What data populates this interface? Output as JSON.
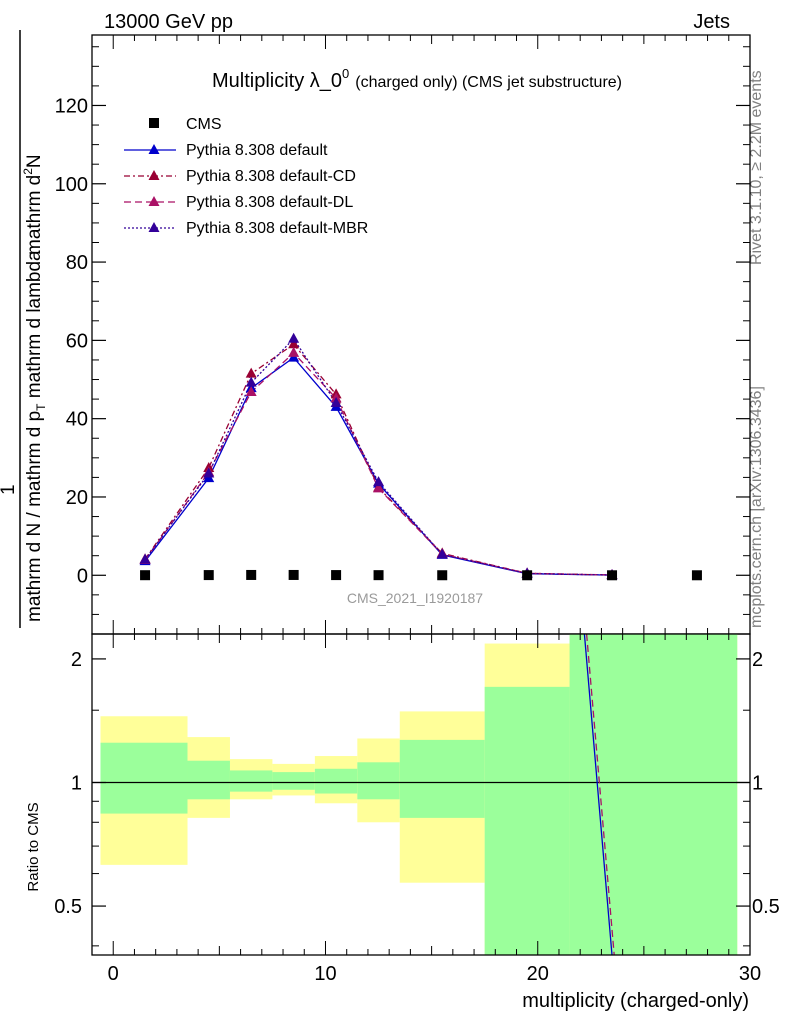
{
  "header": {
    "left": "13000 GeV pp",
    "right": "Jets"
  },
  "side_labels": {
    "rivet": "Rivet 3.1.10, ≥ 2.2M events",
    "mcplots": "mcplots.cern.ch [arXiv:1306.3436]"
  },
  "watermark": "CMS_2021_I1920187",
  "chart_data": {
    "type": "scatter",
    "title_main": "Multiplicity λ_0",
    "title_sup": "0",
    "title_suffix": "(charged only) (CMS jet substructure)",
    "xlabel": "multiplicity (charged-only)",
    "ylabel_upper_line1": "mathrm d",
    "ylabel_upper_sup": "2",
    "ylabel_upper_line1b": "N",
    "ylabel_upper_line2": "mathrm d p",
    "ylabel_upper_sub": "T",
    "ylabel_upper_line2b": " mathrm d lambda",
    "ylabel_lower_line1": "mathrm d N / mathrm d p",
    "ylabel_lower_sub": "T",
    "ylabel_lower_line1b": "mathrm d N",
    "ylabel_prefix": "1",
    "ylabel_ratio": "Ratio to CMS",
    "xlim": [
      -1,
      30
    ],
    "ylim": [
      -15,
      138
    ],
    "ratio_ylim": [
      0.38,
      2.3
    ],
    "xticks": [
      0,
      10,
      20,
      30
    ],
    "yticks": [
      0,
      20,
      40,
      60,
      80,
      100,
      120
    ],
    "ratio_yticks": [
      0.5,
      1,
      2
    ],
    "ratio_ytick_labels": [
      "0.5",
      "1",
      "2"
    ],
    "legend_position": "top-left",
    "cms": {
      "name": "CMS",
      "x": [
        1.5,
        4.5,
        6.5,
        8.5,
        10.5,
        12.5,
        15.5,
        19.5,
        23.5,
        27.5
      ],
      "y": [
        0.02,
        0.05,
        0.08,
        0.08,
        0.05,
        0.03,
        0.01,
        0.002,
        0.0003,
        0.0001
      ]
    },
    "series": [
      {
        "name": "Pythia 8.308 default",
        "color": "#0000cc",
        "dash": "",
        "x": [
          1.5,
          4.5,
          6.5,
          8.5,
          10.5,
          12.5,
          15.5,
          19.5,
          23.5
        ],
        "y": [
          3.6,
          24.8,
          47.8,
          55.6,
          43.0,
          23.4,
          5.2,
          0.4,
          0.05
        ]
      },
      {
        "name": "Pythia 8.308 default-CD",
        "color": "#990033",
        "dash": "6,3,2,3",
        "x": [
          1.5,
          4.5,
          6.5,
          8.5,
          10.5,
          12.5,
          15.5,
          19.5,
          23.5
        ],
        "y": [
          4.1,
          27.4,
          51.5,
          59.0,
          46.2,
          22.4,
          5.6,
          0.5,
          0.06
        ]
      },
      {
        "name": "Pythia 8.308 default-DL",
        "color": "#aa1166",
        "dash": "7,4",
        "x": [
          1.5,
          4.5,
          6.5,
          8.5,
          10.5,
          12.5,
          15.5,
          19.5,
          23.5
        ],
        "y": [
          3.9,
          26.3,
          46.8,
          56.8,
          45.2,
          22.2,
          5.4,
          0.5,
          0.06
        ]
      },
      {
        "name": "Pythia 8.308 default-MBR",
        "color": "#330099",
        "dash": "2,2",
        "x": [
          1.5,
          4.5,
          6.5,
          8.5,
          10.5,
          12.5,
          15.5,
          19.5,
          23.5
        ],
        "y": [
          4.0,
          26.0,
          49.2,
          60.4,
          44.0,
          23.8,
          5.3,
          0.45,
          0.05
        ]
      }
    ],
    "ratio_bands": [
      {
        "x0": -0.6,
        "x1": 3.5,
        "in_lo": 0.84,
        "in_hi": 1.25,
        "out_lo": 0.63,
        "out_hi": 1.45
      },
      {
        "x0": 3.5,
        "x1": 5.5,
        "in_lo": 0.91,
        "in_hi": 1.13,
        "out_lo": 0.82,
        "out_hi": 1.29
      },
      {
        "x0": 5.5,
        "x1": 7.5,
        "in_lo": 0.95,
        "in_hi": 1.07,
        "out_lo": 0.91,
        "out_hi": 1.14
      },
      {
        "x0": 7.5,
        "x1": 9.5,
        "in_lo": 0.96,
        "in_hi": 1.06,
        "out_lo": 0.93,
        "out_hi": 1.11
      },
      {
        "x0": 9.5,
        "x1": 11.5,
        "in_lo": 0.94,
        "in_hi": 1.08,
        "out_lo": 0.89,
        "out_hi": 1.16
      },
      {
        "x0": 11.5,
        "x1": 13.5,
        "in_lo": 0.91,
        "in_hi": 1.12,
        "out_lo": 0.8,
        "out_hi": 1.28
      },
      {
        "x0": 13.5,
        "x1": 17.5,
        "in_lo": 0.82,
        "in_hi": 1.27,
        "out_lo": 0.57,
        "out_hi": 1.49
      },
      {
        "x0": 17.5,
        "x1": 21.5,
        "in_lo": 0.3,
        "in_hi": 1.71,
        "out_lo": 0.3,
        "out_hi": 2.18
      },
      {
        "x0": 21.5,
        "x1": 29.4,
        "in_lo": 0.3,
        "in_hi": 2.4,
        "out_lo": 0.3,
        "out_hi": 2.4
      }
    ],
    "ratio_lines": [
      {
        "color": "#0000cc",
        "dash": "",
        "x": [
          22.2,
          23.5
        ],
        "y": [
          2.4,
          0.3
        ]
      },
      {
        "color": "#aa1166",
        "dash": "7,4",
        "x": [
          22.3,
          23.6
        ],
        "y": [
          2.4,
          0.3
        ]
      }
    ],
    "colors": {
      "band_inner": "#9bff9b",
      "band_outer": "#ffff99"
    }
  }
}
